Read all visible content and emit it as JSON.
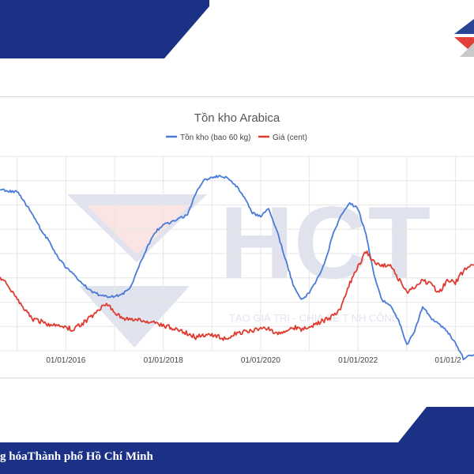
{
  "page": {
    "footer_text": "g hóaThành phố Hồ Chí Minh",
    "watermark_letters": "HCT",
    "watermark_slogan": "TẠO GIÁ TRỊ - CHIA SẺ T  NH CÔNG"
  },
  "colors": {
    "navy": "#1b3185",
    "logo_red": "#e0413a",
    "series_blue": "#4a7bd9",
    "series_red": "#df3b30",
    "grid": "#e6e6e6"
  },
  "chart_data": {
    "type": "line",
    "title": "Tồn kho Arabica",
    "legend_position": "top",
    "grid": true,
    "x_tick_labels": [
      "01/01/2016",
      "01/01/2018",
      "01/01/2020",
      "01/01/2022",
      "01/01/2"
    ],
    "xlim": [
      "2014-08-25",
      "2024-05-20"
    ],
    "ylim": [
      0,
      10
    ],
    "series": [
      {
        "name": "Tồn kho (bao 60 kg)",
        "color": "#4a7bd9",
        "points": [
          [
            "2014-08-25",
            8.3
          ],
          [
            "2014-11-01",
            8.2
          ],
          [
            "2015-01-01",
            8.2
          ],
          [
            "2015-03-01",
            7.6
          ],
          [
            "2015-05-01",
            7.0
          ],
          [
            "2015-07-01",
            6.2
          ],
          [
            "2015-09-01",
            5.6
          ],
          [
            "2015-11-01",
            4.8
          ],
          [
            "2016-01-01",
            4.3
          ],
          [
            "2016-03-01",
            3.9
          ],
          [
            "2016-05-01",
            3.5
          ],
          [
            "2016-07-01",
            3.1
          ],
          [
            "2016-09-01",
            2.9
          ],
          [
            "2016-11-01",
            2.8
          ],
          [
            "2017-01-01",
            2.8
          ],
          [
            "2017-03-01",
            2.9
          ],
          [
            "2017-05-01",
            3.3
          ],
          [
            "2017-07-01",
            4.3
          ],
          [
            "2017-09-01",
            5.3
          ],
          [
            "2017-11-01",
            6.1
          ],
          [
            "2018-01-01",
            6.5
          ],
          [
            "2018-03-01",
            6.6
          ],
          [
            "2018-05-01",
            6.8
          ],
          [
            "2018-07-01",
            7.0
          ],
          [
            "2018-09-01",
            8.1
          ],
          [
            "2018-11-01",
            8.8
          ],
          [
            "2019-01-01",
            8.9
          ],
          [
            "2019-03-01",
            9.0
          ],
          [
            "2019-05-01",
            8.9
          ],
          [
            "2019-07-01",
            8.5
          ],
          [
            "2019-09-01",
            7.9
          ],
          [
            "2019-11-01",
            7.1
          ],
          [
            "2020-01-01",
            6.9
          ],
          [
            "2020-03-01",
            7.3
          ],
          [
            "2020-05-01",
            6.2
          ],
          [
            "2020-07-01",
            4.8
          ],
          [
            "2020-09-01",
            3.4
          ],
          [
            "2020-11-01",
            2.6
          ],
          [
            "2021-01-01",
            3.0
          ],
          [
            "2021-03-01",
            3.7
          ],
          [
            "2021-05-01",
            4.6
          ],
          [
            "2021-07-01",
            6.1
          ],
          [
            "2021-09-01",
            7.0
          ],
          [
            "2021-11-01",
            7.6
          ],
          [
            "2022-01-01",
            7.3
          ],
          [
            "2022-03-01",
            6.0
          ],
          [
            "2022-05-01",
            3.9
          ],
          [
            "2022-07-01",
            2.6
          ],
          [
            "2022-09-01",
            2.3
          ],
          [
            "2022-11-01",
            1.6
          ],
          [
            "2023-01-01",
            0.3
          ],
          [
            "2023-03-01",
            1.0
          ],
          [
            "2023-05-01",
            2.3
          ],
          [
            "2023-07-01",
            1.7
          ],
          [
            "2023-09-01",
            1.4
          ],
          [
            "2023-11-01",
            1.0
          ],
          [
            "2024-01-01",
            0.4
          ],
          [
            "2024-03-01",
            -0.4
          ],
          [
            "2024-05-20",
            -0.2
          ]
        ]
      },
      {
        "name": "Giá (cent)",
        "color": "#df3b30",
        "points": [
          [
            "2014-08-25",
            3.8
          ],
          [
            "2014-11-01",
            3.3
          ],
          [
            "2015-01-01",
            2.7
          ],
          [
            "2015-03-01",
            2.1
          ],
          [
            "2015-05-01",
            1.6
          ],
          [
            "2015-07-01",
            1.5
          ],
          [
            "2015-09-01",
            1.3
          ],
          [
            "2015-11-01",
            1.4
          ],
          [
            "2016-01-01",
            1.2
          ],
          [
            "2016-03-01",
            1.1
          ],
          [
            "2016-05-01",
            1.4
          ],
          [
            "2016-07-01",
            1.7
          ],
          [
            "2016-09-01",
            2.1
          ],
          [
            "2016-11-01",
            2.5
          ],
          [
            "2017-01-01",
            2.0
          ],
          [
            "2017-03-01",
            1.7
          ],
          [
            "2017-05-01",
            1.6
          ],
          [
            "2017-07-01",
            1.6
          ],
          [
            "2017-09-01",
            1.5
          ],
          [
            "2017-11-01",
            1.4
          ],
          [
            "2018-01-01",
            1.3
          ],
          [
            "2018-03-01",
            1.2
          ],
          [
            "2018-05-01",
            1.1
          ],
          [
            "2018-07-01",
            0.9
          ],
          [
            "2018-09-01",
            0.7
          ],
          [
            "2018-11-01",
            0.8
          ],
          [
            "2019-01-01",
            0.8
          ],
          [
            "2019-03-01",
            0.7
          ],
          [
            "2019-05-01",
            0.6
          ],
          [
            "2019-07-01",
            0.9
          ],
          [
            "2019-09-01",
            1.0
          ],
          [
            "2019-11-01",
            1.0
          ],
          [
            "2020-01-01",
            1.2
          ],
          [
            "2020-03-01",
            1.1
          ],
          [
            "2020-05-01",
            0.9
          ],
          [
            "2020-07-01",
            1.0
          ],
          [
            "2020-09-01",
            1.2
          ],
          [
            "2020-11-01",
            1.1
          ],
          [
            "2021-01-01",
            1.2
          ],
          [
            "2021-03-01",
            1.4
          ],
          [
            "2021-05-01",
            1.6
          ],
          [
            "2021-07-01",
            1.8
          ],
          [
            "2021-09-01",
            2.3
          ],
          [
            "2021-11-01",
            3.5
          ],
          [
            "2022-01-01",
            4.3
          ],
          [
            "2022-03-01",
            5.1
          ],
          [
            "2022-05-01",
            4.6
          ],
          [
            "2022-07-01",
            4.4
          ],
          [
            "2022-09-01",
            4.4
          ],
          [
            "2022-11-01",
            3.7
          ],
          [
            "2023-01-01",
            3.0
          ],
          [
            "2023-03-01",
            3.3
          ],
          [
            "2023-05-01",
            3.6
          ],
          [
            "2023-07-01",
            3.4
          ],
          [
            "2023-09-01",
            3.0
          ],
          [
            "2023-11-01",
            3.6
          ],
          [
            "2024-01-01",
            3.5
          ],
          [
            "2024-03-01",
            4.1
          ],
          [
            "2024-05-20",
            4.4
          ]
        ]
      }
    ]
  }
}
